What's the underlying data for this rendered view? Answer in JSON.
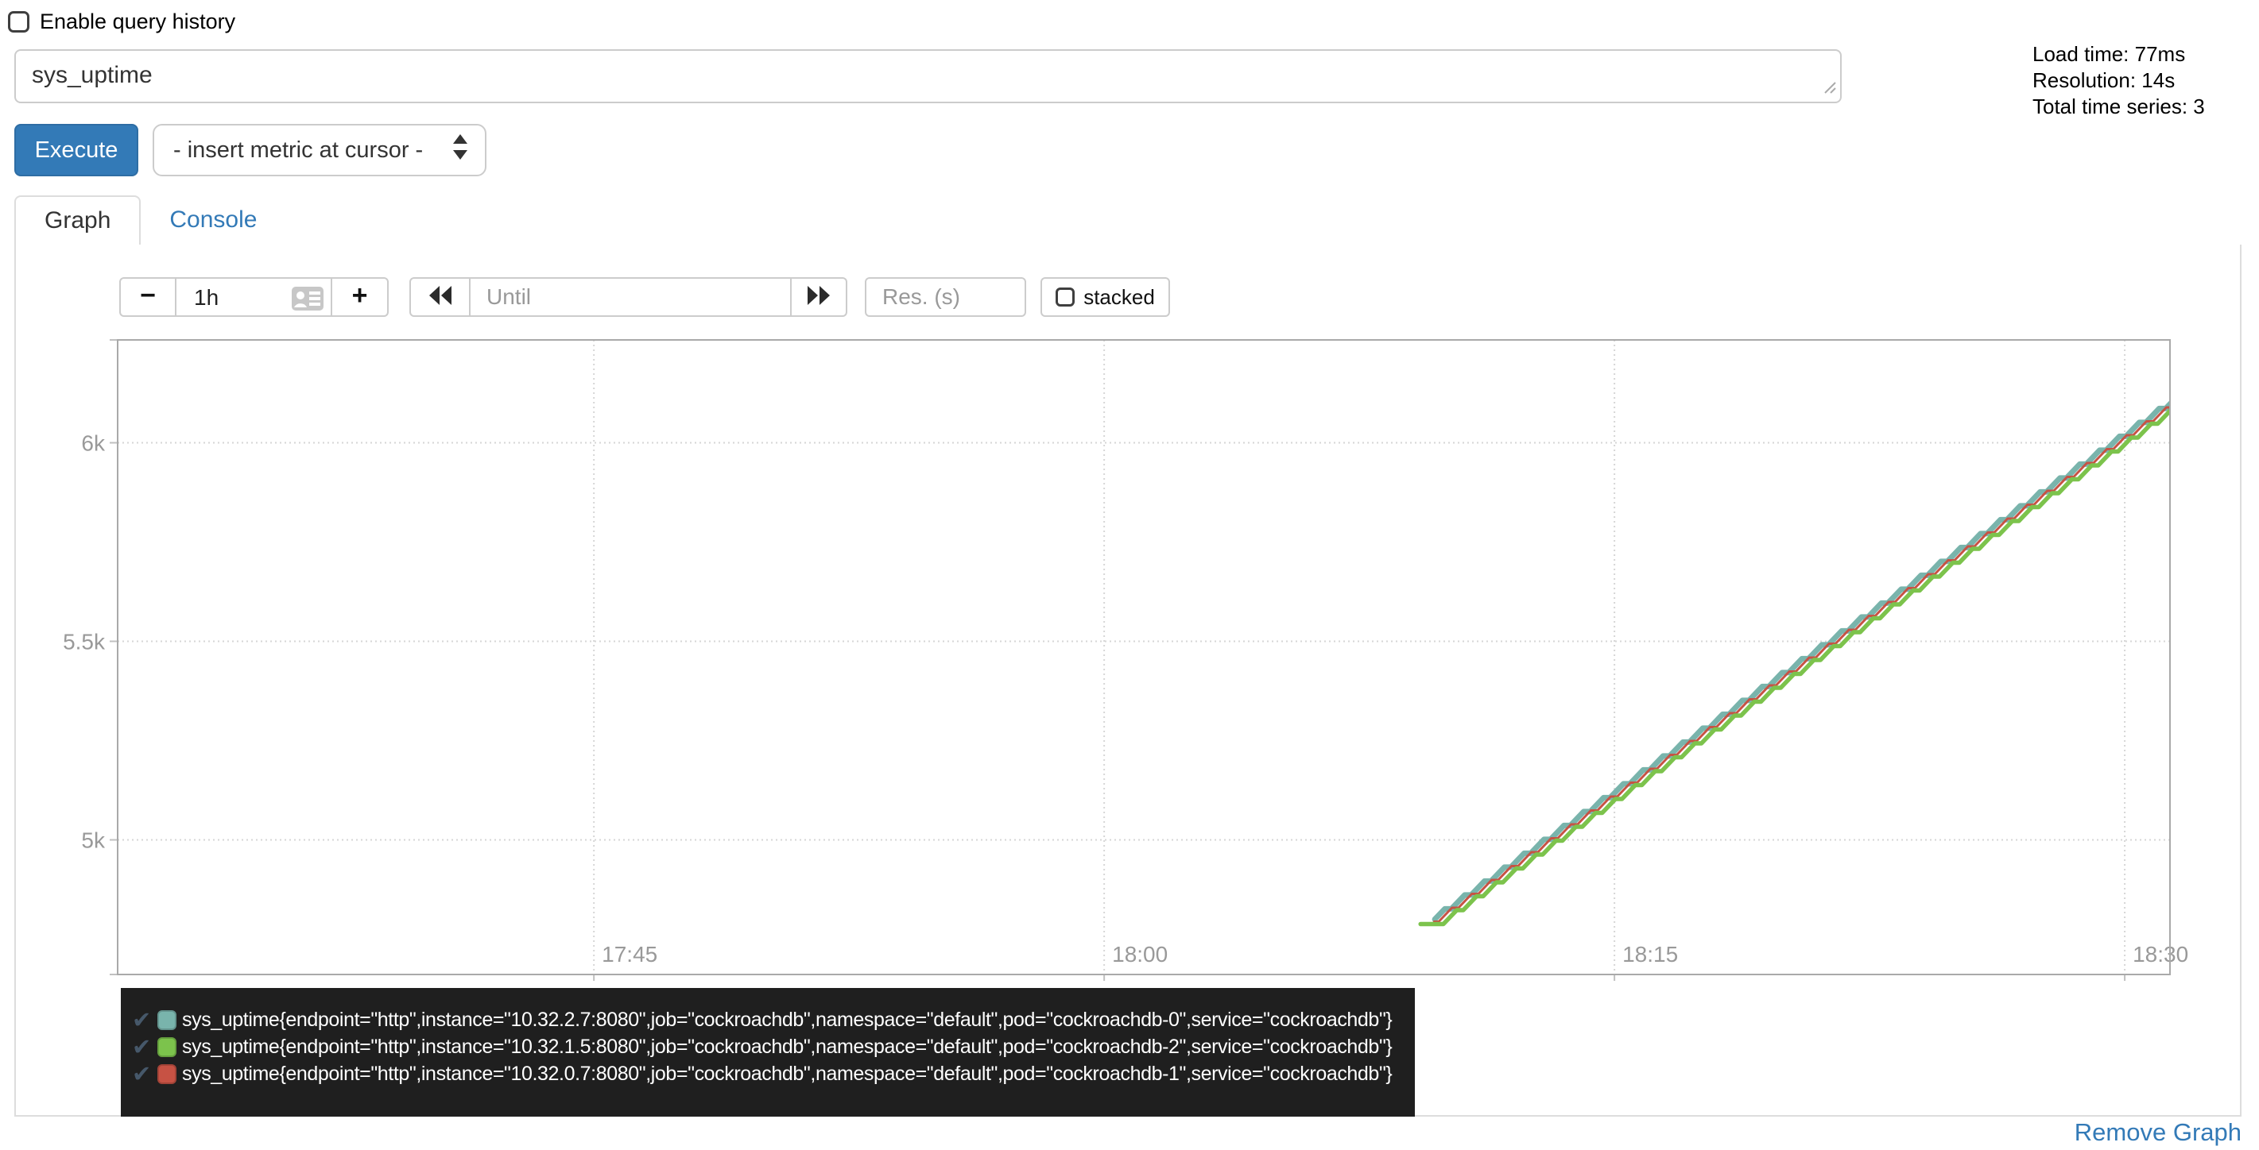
{
  "query_history": {
    "label": "Enable query history",
    "checked": false
  },
  "query": {
    "value": "sys_uptime"
  },
  "stats": {
    "lines": [
      "Load time: 77ms",
      "Resolution: 14s",
      "Total time series: 3"
    ]
  },
  "toolbar": {
    "execute_label": "Execute",
    "metric_select_value": "- insert metric at cursor -"
  },
  "tabs": {
    "graph": "Graph",
    "console": "Console"
  },
  "controls": {
    "minus": "−",
    "range_value": "1h",
    "plus": "+",
    "until_placeholder": "Until",
    "res_placeholder": "Res. (s)",
    "stacked_label": "stacked",
    "stacked_checked": false
  },
  "legend": {
    "items": [
      {
        "color": "#79b4ac",
        "label": "sys_uptime{endpoint=\"http\",instance=\"10.32.2.7:8080\",job=\"cockroachdb\",namespace=\"default\",pod=\"cockroachdb-0\",service=\"cockroachdb\"}"
      },
      {
        "color": "#7cc34c",
        "label": "sys_uptime{endpoint=\"http\",instance=\"10.32.1.5:8080\",job=\"cockroachdb\",namespace=\"default\",pod=\"cockroachdb-2\",service=\"cockroachdb\"}"
      },
      {
        "color": "#c75244",
        "label": "sys_uptime{endpoint=\"http\",instance=\"10.32.0.7:8080\",job=\"cockroachdb\",namespace=\"default\",pod=\"cockroachdb-1\",service=\"cockroachdb\"}"
      }
    ]
  },
  "footer": {
    "remove_graph": "Remove Graph"
  },
  "chart_data": {
    "type": "line",
    "title": "",
    "xlabel": "",
    "ylabel": "",
    "grid": true,
    "legend_position": "below",
    "x_axis": {
      "origin": "17:30",
      "labels": [
        "17:45",
        "18:00",
        "18:15",
        "18:30"
      ],
      "tick_minutes": [
        15,
        30,
        45,
        60
      ],
      "range_minutes": [
        1.0,
        61.33
      ]
    },
    "y_axis": {
      "tick_labels": [
        "6k",
        "5.5k",
        "5k"
      ],
      "tick_values": [
        6000,
        5500,
        5000
      ],
      "range": [
        4661,
        6259
      ]
    },
    "step": {
      "period_min": 0.5833,
      "flat_fraction": 0.33,
      "rate_per_min": 60
    },
    "series": [
      {
        "name": "sys_uptime{endpoint=\"http\",instance=\"10.32.2.7:8080\",job=\"cockroachdb\",namespace=\"default\",pod=\"cockroachdb-0\",service=\"cockroachdb\"}",
        "color": "#79b4ac",
        "stroke_width": 7,
        "gen": {
          "t0": 39.72,
          "v0": 4800,
          "grid": 39.43
        },
        "points": [
          [
            "18:10",
            4800
          ],
          [
            "18:15",
            5130
          ],
          [
            "18:20",
            5430
          ],
          [
            "18:25",
            5730
          ],
          [
            "18:30",
            6030
          ],
          [
            "18:31",
            6100
          ]
        ]
      },
      {
        "name": "sys_uptime{endpoint=\"http\",instance=\"10.32.0.7:8080\",job=\"cockroachdb\",namespace=\"default\",pod=\"cockroachdb-1\",service=\"cockroachdb\"}",
        "color": "#c75244",
        "stroke_width": 3,
        "gen": {
          "t0": 39.7,
          "v0": 4794,
          "grid": 39.64
        },
        "points": [
          [
            "18:10",
            4794
          ],
          [
            "18:15",
            5124
          ],
          [
            "18:20",
            5424
          ],
          [
            "18:25",
            5724
          ],
          [
            "18:30",
            6024
          ],
          [
            "18:31",
            6094
          ]
        ]
      },
      {
        "name": "sys_uptime{endpoint=\"http\",instance=\"10.32.1.5:8080\",job=\"cockroachdb\",namespace=\"default\",pod=\"cockroachdb-2\",service=\"cockroachdb\"}",
        "color": "#7cc34c",
        "stroke_width": 5.5,
        "gen": {
          "t0": 39.78,
          "v0": 4788,
          "grid": 39.78,
          "lead_flat_from": 39.3
        },
        "points": [
          [
            "18:09",
            4788
          ],
          [
            "18:15",
            5118
          ],
          [
            "18:20",
            5418
          ],
          [
            "18:25",
            5718
          ],
          [
            "18:30",
            6018
          ],
          [
            "18:31",
            6088
          ]
        ]
      }
    ]
  }
}
